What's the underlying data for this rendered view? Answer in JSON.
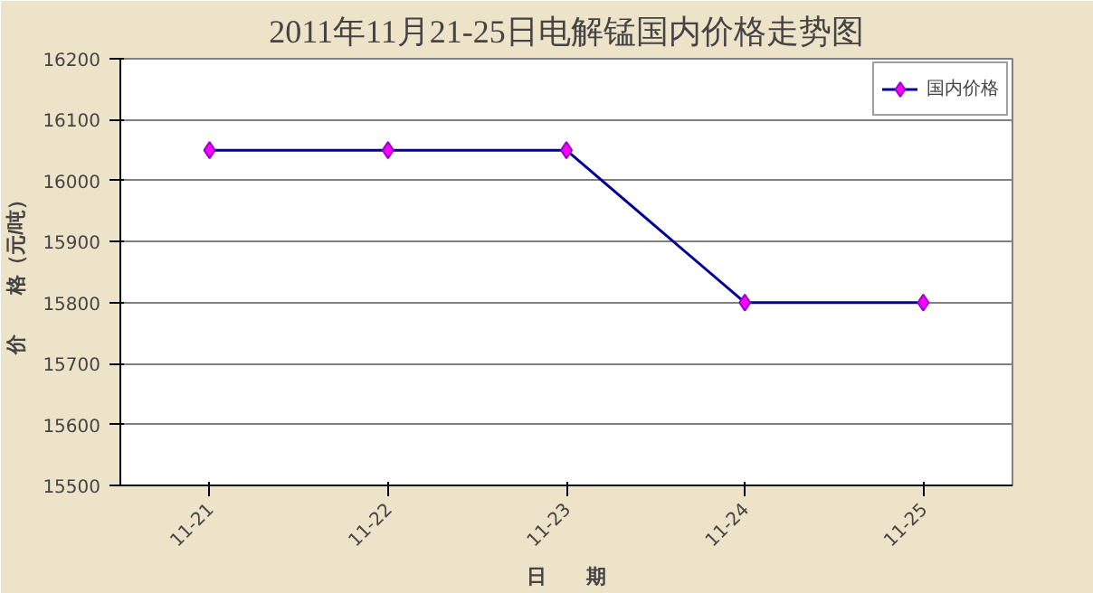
{
  "chart_data": {
    "type": "line",
    "title": "2011年11月21-25日电解锰国内价格走势图",
    "xlabel": "日　　期",
    "ylabel": "价　　格（元/吨）",
    "categories": [
      "11-21",
      "11-22",
      "11-23",
      "11-24",
      "11-25"
    ],
    "series": [
      {
        "name": "国内价格",
        "color": "#000099",
        "values": [
          16050,
          16050,
          16050,
          15800,
          15800
        ]
      }
    ],
    "ylim": [
      15500,
      16200
    ],
    "yticks": [
      15500,
      15600,
      15700,
      15800,
      15900,
      16000,
      16100,
      16200
    ],
    "grid": "y",
    "legend": "top right",
    "marker": "diamond",
    "line_style": "solid"
  }
}
